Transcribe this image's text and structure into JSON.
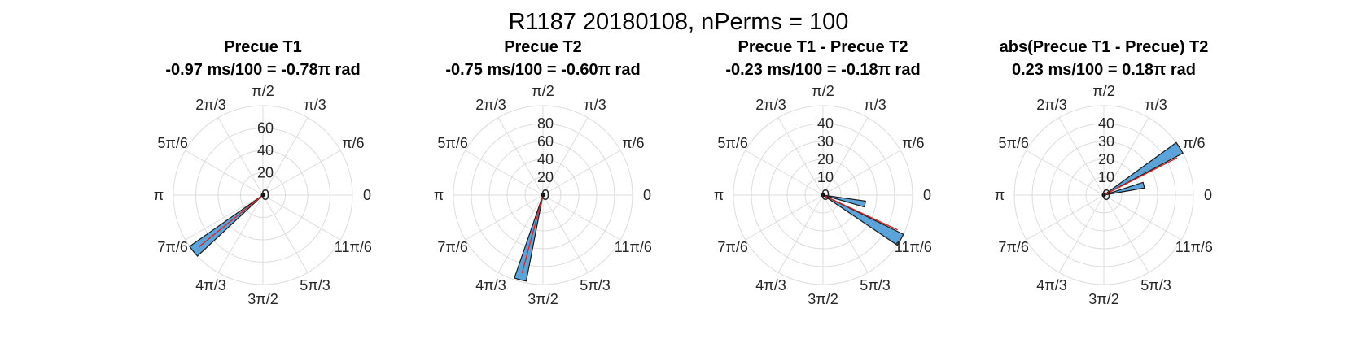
{
  "figure": {
    "title": "R1187 20180108, nPerms = 100"
  },
  "theta_labels": [
    "0",
    "π/6",
    "π/3",
    "π/2",
    "2π/3",
    "5π/6",
    "π",
    "7π/6",
    "4π/3",
    "3π/2",
    "5π/3",
    "11π/6"
  ],
  "colors": {
    "bar_fill": "#5ba3d9",
    "bar_edge": "#1a1a1a",
    "mean_line": "#d62728",
    "grid": "#dcdcdc"
  },
  "chart_data": [
    {
      "type": "polar-histogram",
      "title": "Precue T1",
      "subtitle": "-0.97 ms/100 = -0.78π rad",
      "rlim": [
        0,
        80
      ],
      "rticks": [
        0,
        20,
        40,
        60
      ],
      "bars": [
        {
          "theta_deg": 219,
          "count": 80
        }
      ],
      "mean_angle_deg": 219,
      "grid": true
    },
    {
      "type": "polar-histogram",
      "title": "Precue T2",
      "subtitle": "-0.75 ms/100 = -0.60π rad",
      "rlim": [
        0,
        100
      ],
      "rticks": [
        0,
        20,
        40,
        60,
        80
      ],
      "bars": [
        {
          "theta_deg": 255,
          "count": 98
        }
      ],
      "mean_angle_deg": 255,
      "grid": true
    },
    {
      "type": "polar-histogram",
      "title": "Precue T1 - Precue T2",
      "subtitle": "-0.23 ms/100 = -0.18π rad",
      "rlim": [
        0,
        50
      ],
      "rticks": [
        0,
        10,
        20,
        30,
        40
      ],
      "bars": [
        {
          "theta_deg": 330,
          "count": 50
        },
        {
          "theta_deg": 348,
          "count": 24
        }
      ],
      "mean_angle_deg": 335,
      "grid": true
    },
    {
      "type": "polar-histogram",
      "title": "abs(Precue T1 - Precue) T2",
      "subtitle": "0.23 ms/100 = 0.18π rad",
      "rlim": [
        0,
        50
      ],
      "rticks": [
        0,
        10,
        20,
        30,
        40
      ],
      "bars": [
        {
          "theta_deg": 32,
          "count": 50
        },
        {
          "theta_deg": 14,
          "count": 23
        }
      ],
      "mean_angle_deg": 27,
      "grid": true
    }
  ]
}
